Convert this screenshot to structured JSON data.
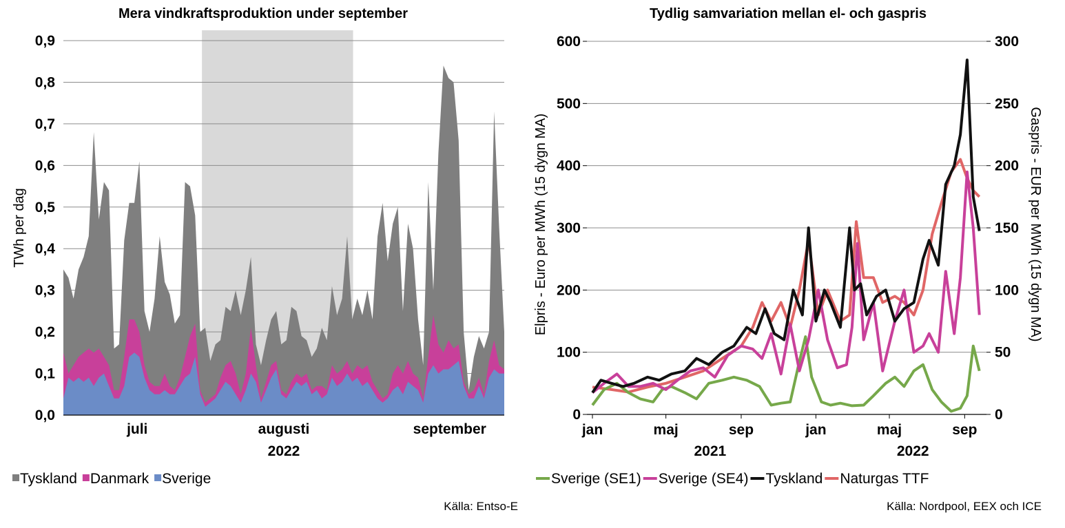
{
  "charts": [
    {
      "type": "area",
      "title": "Mera vindkraftsproduktion under september",
      "ylabel": "TWh per dag",
      "ylim": [
        0,
        0.9
      ],
      "yticks": [
        "0,0",
        "0,1",
        "0,2",
        "0,3",
        "0,4",
        "0,5",
        "0,6",
        "0,7",
        "0,8",
        "0,9"
      ],
      "xlabels": [
        "juli",
        "augusti",
        "september"
      ],
      "year_label": "2022",
      "x_start": "2022-06-12",
      "x_end": "2022-09-25",
      "highlight": {
        "start": "2022-07-15",
        "end": "2022-08-20",
        "color": "#d9d9d9"
      },
      "series": [
        {
          "name": "Tyskland",
          "color": "#7f7f7f",
          "values": [
            0.35,
            0.33,
            0.28,
            0.35,
            0.38,
            0.43,
            0.68,
            0.47,
            0.56,
            0.54,
            0.16,
            0.17,
            0.42,
            0.51,
            0.51,
            0.61,
            0.25,
            0.2,
            0.28,
            0.43,
            0.32,
            0.29,
            0.22,
            0.24,
            0.56,
            0.55,
            0.48,
            0.2,
            0.21,
            0.13,
            0.17,
            0.18,
            0.26,
            0.25,
            0.3,
            0.24,
            0.3,
            0.38,
            0.17,
            0.12,
            0.18,
            0.23,
            0.25,
            0.17,
            0.18,
            0.26,
            0.25,
            0.19,
            0.18,
            0.14,
            0.16,
            0.21,
            0.18,
            0.31,
            0.24,
            0.28,
            0.43,
            0.23,
            0.28,
            0.24,
            0.3,
            0.23,
            0.43,
            0.51,
            0.37,
            0.46,
            0.5,
            0.25,
            0.46,
            0.4,
            0.23,
            0.12,
            0.56,
            0.3,
            0.63,
            0.84,
            0.81,
            0.8,
            0.66,
            0.2,
            0.06,
            0.14,
            0.19,
            0.16,
            0.2,
            0.73,
            0.45,
            0.2
          ]
        },
        {
          "name": "Danmark",
          "color": "#c8409a",
          "values": [
            0.15,
            0.1,
            0.12,
            0.14,
            0.15,
            0.16,
            0.15,
            0.16,
            0.14,
            0.12,
            0.06,
            0.06,
            0.14,
            0.23,
            0.23,
            0.2,
            0.12,
            0.08,
            0.07,
            0.07,
            0.1,
            0.07,
            0.06,
            0.09,
            0.14,
            0.19,
            0.22,
            0.06,
            0.03,
            0.04,
            0.05,
            0.09,
            0.12,
            0.13,
            0.1,
            0.05,
            0.1,
            0.21,
            0.12,
            0.04,
            0.08,
            0.12,
            0.13,
            0.06,
            0.05,
            0.08,
            0.1,
            0.09,
            0.1,
            0.06,
            0.07,
            0.07,
            0.06,
            0.12,
            0.1,
            0.11,
            0.13,
            0.1,
            0.12,
            0.11,
            0.12,
            0.08,
            0.06,
            0.04,
            0.05,
            0.1,
            0.12,
            0.1,
            0.13,
            0.1,
            0.09,
            0.04,
            0.14,
            0.24,
            0.17,
            0.15,
            0.18,
            0.16,
            0.17,
            0.08,
            0.05,
            0.06,
            0.09,
            0.05,
            0.13,
            0.18,
            0.12,
            0.11
          ]
        },
        {
          "name": "Sverige",
          "color": "#6b8cc7",
          "values": [
            0.04,
            0.09,
            0.08,
            0.09,
            0.08,
            0.09,
            0.07,
            0.09,
            0.1,
            0.07,
            0.04,
            0.04,
            0.07,
            0.14,
            0.15,
            0.14,
            0.09,
            0.06,
            0.05,
            0.05,
            0.06,
            0.05,
            0.05,
            0.07,
            0.09,
            0.1,
            0.14,
            0.05,
            0.02,
            0.03,
            0.04,
            0.06,
            0.08,
            0.07,
            0.05,
            0.03,
            0.06,
            0.1,
            0.08,
            0.03,
            0.06,
            0.09,
            0.11,
            0.05,
            0.04,
            0.06,
            0.08,
            0.07,
            0.08,
            0.05,
            0.06,
            0.04,
            0.05,
            0.09,
            0.07,
            0.08,
            0.1,
            0.08,
            0.09,
            0.07,
            0.08,
            0.06,
            0.04,
            0.03,
            0.04,
            0.06,
            0.07,
            0.05,
            0.08,
            0.07,
            0.06,
            0.03,
            0.1,
            0.12,
            0.1,
            0.11,
            0.11,
            0.12,
            0.13,
            0.07,
            0.04,
            0.04,
            0.07,
            0.04,
            0.09,
            0.11,
            0.1,
            0.1
          ]
        }
      ],
      "source": "Källa: Entso-E"
    },
    {
      "type": "line",
      "title": "Tydlig samvariation mellan el- och gaspris",
      "ylabel_left": "Elpris - Euro per MWh (15 dygn MA)",
      "ylabel_right": "Gaspris - EUR per MWh (15 dygn MA)",
      "ylim_left": [
        0,
        600
      ],
      "ylim_right": [
        0,
        300
      ],
      "yticks_left": [
        "0",
        "100",
        "200",
        "300",
        "400",
        "500",
        "600"
      ],
      "yticks_right": [
        "0",
        "50",
        "100",
        "150",
        "200",
        "250",
        "300"
      ],
      "month_ticks": [
        "jan",
        "maj",
        "sep",
        "jan",
        "maj",
        "sep"
      ],
      "year_labels": [
        "2021",
        "2022"
      ],
      "x_start": "2021-01-01",
      "x_end": "2022-10-01",
      "series": [
        {
          "name": "Sverige (SE1)",
          "axis": "left",
          "color": "#76a84a",
          "dates": [
            "2021-01-01",
            "2021-01-20",
            "2021-02-10",
            "2021-03-01",
            "2021-03-20",
            "2021-04-10",
            "2021-04-25",
            "2021-05-10",
            "2021-06-01",
            "2021-06-20",
            "2021-07-10",
            "2021-08-01",
            "2021-08-20",
            "2021-09-10",
            "2021-10-01",
            "2021-10-20",
            "2021-11-05",
            "2021-11-20",
            "2021-12-05",
            "2021-12-15",
            "2021-12-25",
            "2022-01-10",
            "2022-01-25",
            "2022-02-10",
            "2022-03-01",
            "2022-03-20",
            "2022-04-05",
            "2022-04-25",
            "2022-05-10",
            "2022-05-25",
            "2022-06-10",
            "2022-06-25",
            "2022-07-10",
            "2022-07-25",
            "2022-08-10",
            "2022-08-25",
            "2022-09-05",
            "2022-09-15",
            "2022-09-25"
          ],
          "values": [
            15,
            40,
            50,
            35,
            25,
            20,
            40,
            45,
            35,
            25,
            50,
            55,
            60,
            55,
            45,
            15,
            18,
            20,
            85,
            125,
            60,
            20,
            15,
            18,
            14,
            15,
            30,
            50,
            60,
            45,
            70,
            80,
            40,
            20,
            5,
            10,
            30,
            110,
            70
          ]
        },
        {
          "name": "Sverige (SE4)",
          "axis": "left",
          "color": "#c8409a",
          "dates": [
            "2021-01-01",
            "2021-01-20",
            "2021-02-10",
            "2021-03-01",
            "2021-03-20",
            "2021-04-10",
            "2021-05-01",
            "2021-05-20",
            "2021-06-10",
            "2021-07-01",
            "2021-07-20",
            "2021-08-10",
            "2021-09-01",
            "2021-09-20",
            "2021-10-05",
            "2021-10-20",
            "2021-11-05",
            "2021-11-20",
            "2021-12-05",
            "2021-12-20",
            "2022-01-05",
            "2022-01-20",
            "2022-02-05",
            "2022-02-20",
            "2022-03-01",
            "2022-03-10",
            "2022-03-20",
            "2022-04-05",
            "2022-04-20",
            "2022-05-10",
            "2022-05-25",
            "2022-06-10",
            "2022-06-25",
            "2022-07-05",
            "2022-07-20",
            "2022-08-01",
            "2022-08-15",
            "2022-08-25",
            "2022-09-05",
            "2022-09-15",
            "2022-09-25"
          ],
          "values": [
            35,
            50,
            65,
            45,
            45,
            50,
            40,
            55,
            70,
            75,
            60,
            95,
            110,
            105,
            90,
            130,
            65,
            145,
            70,
            120,
            200,
            120,
            75,
            80,
            140,
            275,
            120,
            180,
            70,
            150,
            200,
            100,
            110,
            130,
            100,
            230,
            130,
            220,
            390,
            300,
            160
          ]
        },
        {
          "name": "Tyskland",
          "axis": "left",
          "color": "#111111",
          "dates": [
            "2021-01-01",
            "2021-01-15",
            "2021-02-01",
            "2021-02-20",
            "2021-03-10",
            "2021-04-01",
            "2021-04-20",
            "2021-05-10",
            "2021-06-01",
            "2021-06-20",
            "2021-07-10",
            "2021-08-01",
            "2021-08-20",
            "2021-09-10",
            "2021-09-25",
            "2021-10-10",
            "2021-10-25",
            "2021-11-10",
            "2021-11-25",
            "2021-12-10",
            "2021-12-20",
            "2022-01-01",
            "2022-01-15",
            "2022-01-25",
            "2022-02-10",
            "2022-02-25",
            "2022-03-05",
            "2022-03-15",
            "2022-03-25",
            "2022-04-10",
            "2022-04-25",
            "2022-05-10",
            "2022-05-25",
            "2022-06-10",
            "2022-06-25",
            "2022-07-05",
            "2022-07-20",
            "2022-08-01",
            "2022-08-15",
            "2022-08-25",
            "2022-09-05",
            "2022-09-15",
            "2022-09-25"
          ],
          "values": [
            35,
            55,
            50,
            45,
            50,
            60,
            55,
            65,
            70,
            90,
            80,
            100,
            110,
            140,
            130,
            170,
            130,
            120,
            200,
            160,
            300,
            150,
            200,
            180,
            140,
            300,
            200,
            210,
            160,
            190,
            200,
            150,
            170,
            180,
            250,
            280,
            240,
            370,
            400,
            450,
            570,
            350,
            295
          ]
        },
        {
          "name": "Naturgas TTF",
          "axis": "right",
          "color": "#e06666",
          "dates": [
            "2021-01-01",
            "2021-02-01",
            "2021-03-01",
            "2021-04-01",
            "2021-05-01",
            "2021-06-01",
            "2021-07-01",
            "2021-08-01",
            "2021-09-01",
            "2021-09-20",
            "2021-10-05",
            "2021-10-20",
            "2021-11-05",
            "2021-11-20",
            "2021-12-05",
            "2021-12-20",
            "2022-01-05",
            "2022-01-20",
            "2022-02-10",
            "2022-02-25",
            "2022-03-08",
            "2022-03-20",
            "2022-04-05",
            "2022-04-20",
            "2022-05-10",
            "2022-05-25",
            "2022-06-10",
            "2022-06-25",
            "2022-07-10",
            "2022-07-25",
            "2022-08-10",
            "2022-08-25",
            "2022-09-05",
            "2022-09-15",
            "2022-09-25"
          ],
          "values": [
            22,
            20,
            18,
            22,
            25,
            30,
            35,
            45,
            55,
            70,
            90,
            75,
            90,
            70,
            100,
            140,
            80,
            100,
            75,
            80,
            155,
            110,
            110,
            90,
            95,
            90,
            80,
            100,
            145,
            170,
            195,
            205,
            190,
            180,
            175
          ]
        }
      ],
      "source": "Källa: Nordpool, EEX och ICE"
    }
  ]
}
